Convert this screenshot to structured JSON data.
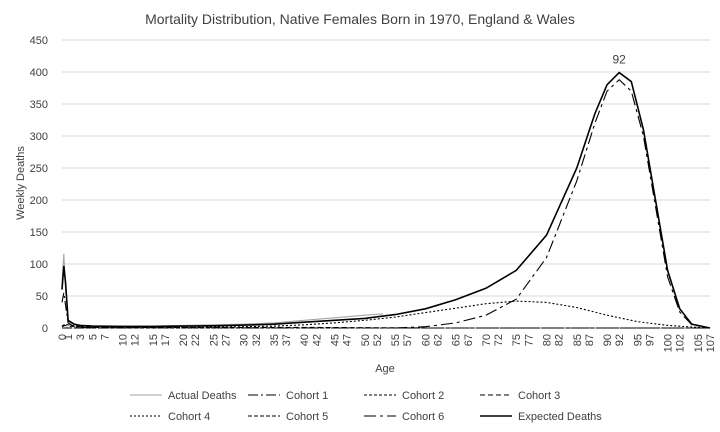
{
  "chart_data": {
    "type": "line",
    "title": "Mortality Distribution, Native Females Born in 1970, England & Wales",
    "xlabel": "Age",
    "ylabel": "Weekly Deaths",
    "xlim": [
      0,
      107
    ],
    "ylim": [
      0,
      450
    ],
    "y_ticks": [
      0,
      50,
      100,
      150,
      200,
      250,
      300,
      350,
      400,
      450
    ],
    "x_ticks": [
      0,
      1,
      3,
      5,
      7,
      10,
      12,
      15,
      17,
      20,
      22,
      25,
      27,
      30,
      32,
      35,
      37,
      40,
      42,
      45,
      47,
      50,
      52,
      55,
      57,
      60,
      62,
      65,
      67,
      70,
      72,
      75,
      77,
      80,
      82,
      85,
      87,
      90,
      92,
      95,
      97,
      100,
      102,
      105,
      107
    ],
    "grid": "horizontal",
    "legend_position": "bottom",
    "annotation": {
      "text": "92",
      "x": 92,
      "y": 399
    },
    "series": [
      {
        "name": "Actual Deaths",
        "color": "#a6a6a6",
        "dash": "solid",
        "x": [
          0,
          0.3,
          0.6,
          1,
          2,
          3,
          5,
          10,
          15,
          20,
          25,
          30,
          35,
          40,
          45,
          50,
          53
        ],
        "y": [
          70,
          116,
          60,
          10,
          6,
          4,
          3,
          3,
          3,
          4,
          5,
          6,
          8,
          12,
          16,
          20,
          22
        ]
      },
      {
        "name": "Cohort 1",
        "color": "#000000",
        "dash": "10,3,2,3",
        "x": [
          0,
          0.3,
          0.6,
          1,
          2,
          4,
          6,
          10
        ],
        "y": [
          40,
          55,
          35,
          8,
          2,
          0.5,
          0,
          0
        ]
      },
      {
        "name": "Cohort 2",
        "color": "#000000",
        "dash": "3,2",
        "x": [
          0,
          0.5,
          1,
          3,
          5,
          10,
          20,
          30,
          40,
          50,
          60,
          70,
          80,
          100,
          107
        ],
        "y": [
          3,
          6,
          5,
          2,
          1,
          0.5,
          0.3,
          0.2,
          0.1,
          0,
          0,
          0,
          0,
          0,
          0
        ]
      },
      {
        "name": "Cohort 3",
        "color": "#000000",
        "dash": "5,3",
        "x": [
          0,
          0.5,
          1,
          3,
          5,
          10,
          20,
          30,
          40,
          50,
          60,
          70,
          80,
          100,
          107
        ],
        "y": [
          2,
          4,
          3,
          2,
          1.5,
          1,
          1,
          1,
          1,
          0.5,
          0,
          0,
          0,
          0,
          0
        ]
      },
      {
        "name": "Cohort 4",
        "color": "#000000",
        "dash": "2,2",
        "x": [
          0,
          10,
          20,
          30,
          35,
          40,
          45,
          50,
          55,
          60,
          65,
          70,
          75,
          80,
          85,
          90,
          95,
          100,
          105,
          107
        ],
        "y": [
          0,
          0.5,
          1,
          2,
          3,
          5,
          8,
          12,
          17,
          24,
          31,
          38,
          42,
          40,
          32,
          20,
          10,
          4,
          1,
          0
        ]
      },
      {
        "name": "Cohort 5",
        "color": "#000000",
        "dash": "4,2",
        "x": [
          0,
          10,
          20,
          30,
          40,
          50,
          60,
          70,
          80,
          100,
          107
        ],
        "y": [
          0,
          0,
          0,
          0,
          0,
          0,
          0,
          0,
          0,
          0,
          0
        ]
      },
      {
        "name": "Cohort 6",
        "color": "#000000",
        "dash": "12,4,3,4",
        "x": [
          55,
          60,
          65,
          70,
          75,
          80,
          85,
          88,
          90,
          92,
          94,
          96,
          98,
          100,
          102,
          104,
          107
        ],
        "y": [
          0,
          2,
          8,
          20,
          45,
          110,
          230,
          320,
          370,
          388,
          370,
          300,
          190,
          80,
          25,
          5,
          0
        ]
      },
      {
        "name": "Expected Deaths",
        "color": "#000000",
        "dash": "solid",
        "x": [
          0,
          0.3,
          0.6,
          1,
          2,
          3,
          5,
          10,
          15,
          20,
          25,
          30,
          35,
          40,
          45,
          50,
          55,
          60,
          65,
          70,
          75,
          80,
          85,
          88,
          90,
          92,
          94,
          96,
          98,
          100,
          102,
          104,
          107
        ],
        "y": [
          60,
          97,
          70,
          12,
          6,
          4,
          3,
          2.5,
          2.5,
          3,
          3.5,
          4.5,
          6,
          9,
          12,
          15,
          21,
          30,
          44,
          62,
          90,
          145,
          250,
          335,
          380,
          399,
          385,
          310,
          200,
          90,
          30,
          6,
          0
        ]
      }
    ]
  }
}
